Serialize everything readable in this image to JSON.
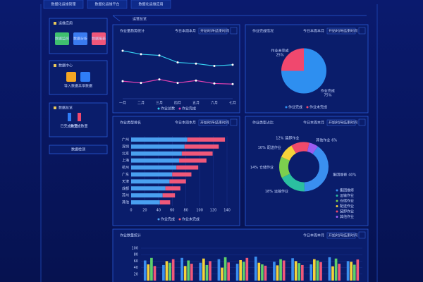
{
  "nav": [
    "数据化运维管理",
    "数据化运维平台",
    "数据化运维应用"
  ],
  "sidebar": [
    {
      "title": "运维应用",
      "items": [
        "数据监控",
        "数据分析",
        "数据报表"
      ]
    },
    {
      "title": "数据中心",
      "items": [
        "导入数据",
        "共享数据"
      ]
    },
    {
      "title": "数据总览",
      "items": [
        "已完成数量",
        "未完成数量"
      ]
    },
    {
      "title": "数据检测"
    }
  ],
  "section_title": "运营总览",
  "filters": {
    "periods": [
      "今日",
      "本周",
      "本月"
    ],
    "start": "开始时间",
    "sep": "~",
    "end": "结束时间"
  },
  "panels": [
    {
      "type": "line",
      "title": "作业量趋势统计",
      "categories": [
        "一月",
        "二月",
        "三月",
        "四月",
        "五月",
        "六月",
        "七月"
      ],
      "ylim": [
        0,
        100
      ],
      "series": [
        {
          "name": "作业总数",
          "color": "#35d0f0",
          "values": [
            82,
            76,
            74,
            62,
            60,
            56,
            58
          ]
        },
        {
          "name": "作业完成",
          "color": "#e040b0",
          "values": [
            30,
            27,
            33,
            27,
            31,
            26,
            25
          ]
        }
      ]
    },
    {
      "type": "pie",
      "title": "作业完成情况",
      "series": [
        {
          "name": "作业完成",
          "color": "#2e8ff0",
          "values": [
            75
          ],
          "value_labels": [
            "75%"
          ]
        },
        {
          "name": "作业未完成",
          "color": "#f0486e",
          "values": [
            25
          ],
          "value_labels": [
            "25%"
          ]
        }
      ]
    },
    {
      "type": "hbar",
      "title": "作业类型排名",
      "categories": [
        "广州",
        "深圳",
        "北京",
        "上海",
        "杭州",
        "广东",
        "天津",
        "成都",
        "苏州",
        "其他"
      ],
      "xlim": [
        0,
        140
      ],
      "xticks": [
        0,
        20,
        40,
        60,
        80,
        100,
        120,
        140
      ],
      "series": [
        {
          "name": "作业完成",
          "color": "#4aa0f0",
          "values": [
            82,
            78,
            74,
            70,
            66,
            60,
            56,
            50,
            46,
            42
          ]
        },
        {
          "name": "作业未完成",
          "color": "#f0587a",
          "values": [
            55,
            50,
            45,
            40,
            32,
            28,
            24,
            22,
            18,
            15
          ]
        }
      ]
    },
    {
      "type": "donut",
      "title": "作业类型占比",
      "categories": [
        "集团维修",
        "运输作业",
        "仓储作业",
        "配送作业",
        "装卸作业",
        "其他作业"
      ],
      "colors": [
        "#3a8ff0",
        "#2bbfa0",
        "#7ccf4e",
        "#f5d23a",
        "#f04a6a",
        "#9a5cf0"
      ],
      "values": [
        40,
        18,
        14,
        10,
        12,
        6
      ],
      "value_labels": [
        "40%",
        "18%",
        "14%",
        "10%",
        "12%",
        "6%"
      ]
    },
    {
      "type": "bar",
      "title": "作业数量统计",
      "ylim": [
        0,
        100
      ],
      "yticks": [
        20,
        40,
        60,
        80,
        100
      ],
      "series": [
        {
          "color": "#3a8ff0",
          "values": [
            62,
            48,
            70,
            55,
            66,
            52,
            74,
            58,
            69,
            50,
            72,
            60
          ]
        },
        {
          "color": "#f5d23a",
          "values": [
            50,
            60,
            45,
            68,
            40,
            63,
            55,
            47,
            60,
            66,
            44,
            58
          ]
        },
        {
          "color": "#5ed06a",
          "values": [
            70,
            55,
            62,
            48,
            72,
            58,
            50,
            66,
            54,
            62,
            68,
            49
          ]
        },
        {
          "color": "#f0587a",
          "values": [
            45,
            66,
            52,
            60,
            56,
            70,
            46,
            62,
            48,
            57,
            52,
            65
          ]
        }
      ]
    }
  ]
}
